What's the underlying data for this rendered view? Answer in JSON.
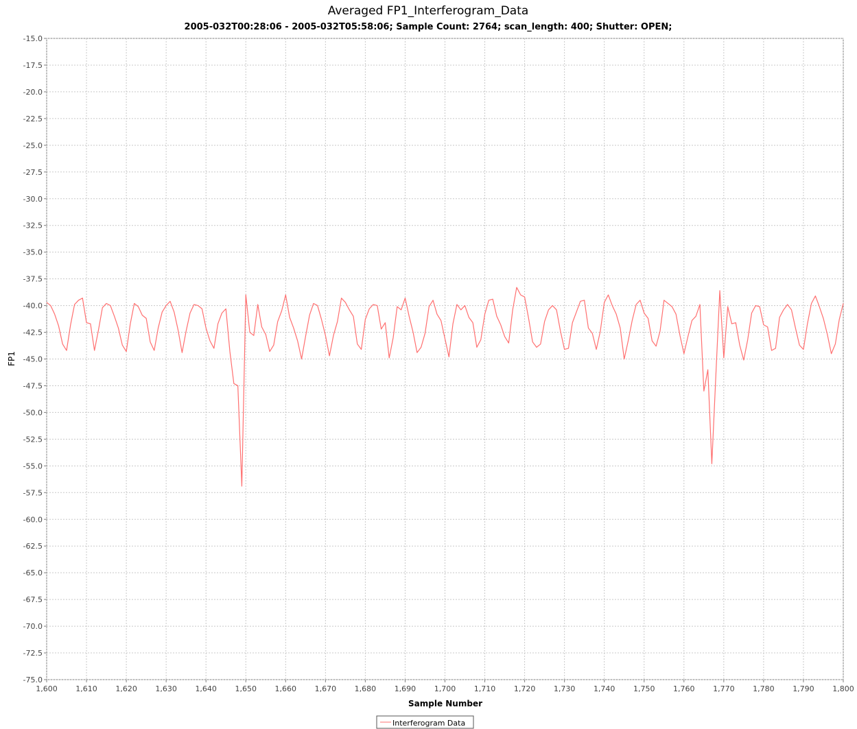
{
  "chart_data": {
    "type": "line",
    "title": "Averaged FP1_Interferogram_Data",
    "subtitle": "2005-032T00:28:06 - 2005-032T05:58:06; Sample Count: 2764; scan_length: 400; Shutter: OPEN;",
    "xlabel": "Sample Number",
    "ylabel": "FP1",
    "xlim": [
      1600,
      1800
    ],
    "ylim": [
      -75.0,
      -15.0
    ],
    "x_ticks": [
      "1,600",
      "1,610",
      "1,620",
      "1,630",
      "1,640",
      "1,650",
      "1,660",
      "1,670",
      "1,680",
      "1,690",
      "1,700",
      "1,710",
      "1,720",
      "1,730",
      "1,740",
      "1,750",
      "1,760",
      "1,770",
      "1,780",
      "1,790",
      "1,800"
    ],
    "y_ticks": [
      "-15.0",
      "-17.5",
      "-20.0",
      "-22.5",
      "-25.0",
      "-27.5",
      "-30.0",
      "-32.5",
      "-35.0",
      "-37.5",
      "-40.0",
      "-42.5",
      "-45.0",
      "-47.5",
      "-50.0",
      "-52.5",
      "-55.0",
      "-57.5",
      "-60.0",
      "-62.5",
      "-65.0",
      "-67.5",
      "-70.0",
      "-72.5",
      "-75.0"
    ],
    "grid": true,
    "legend_position": "bottom-center",
    "series": [
      {
        "name": "Interferogram Data",
        "color": "#ff6f6f",
        "x_start": 1600,
        "x_step": 1,
        "values": [
          -39.7,
          -40.0,
          -40.8,
          -41.9,
          -43.6,
          -44.2,
          -41.8,
          -39.9,
          -39.5,
          -39.3,
          -41.6,
          -41.7,
          -44.2,
          -42.3,
          -40.2,
          -39.8,
          -40.0,
          -41.0,
          -42.1,
          -43.7,
          -44.3,
          -41.7,
          -39.8,
          -40.1,
          -40.9,
          -41.2,
          -43.4,
          -44.2,
          -42.1,
          -40.6,
          -40.0,
          -39.6,
          -40.6,
          -42.3,
          -44.4,
          -42.4,
          -40.7,
          -39.9,
          -40.0,
          -40.3,
          -42.1,
          -43.3,
          -44.0,
          -41.7,
          -40.7,
          -40.3,
          -44.3,
          -47.3,
          -47.5,
          -56.9,
          -39.0,
          -42.5,
          -42.8,
          -39.9,
          -42.0,
          -42.7,
          -44.3,
          -43.7,
          -41.5,
          -40.5,
          -39.0,
          -41.1,
          -42.1,
          -43.3,
          -45.0,
          -42.9,
          -40.9,
          -39.8,
          -40.0,
          -41.3,
          -42.8,
          -44.7,
          -42.8,
          -41.5,
          -39.3,
          -39.7,
          -40.4,
          -41.0,
          -43.6,
          -44.1,
          -41.3,
          -40.3,
          -39.9,
          -40.0,
          -42.2,
          -41.6,
          -44.9,
          -43.0,
          -40.1,
          -40.4,
          -39.3,
          -41.0,
          -42.5,
          -44.4,
          -43.9,
          -42.6,
          -40.1,
          -39.5,
          -40.8,
          -41.4,
          -43.1,
          -44.8,
          -41.7,
          -39.9,
          -40.4,
          -40.0,
          -41.1,
          -41.6,
          -43.9,
          -43.2,
          -40.8,
          -39.5,
          -39.4,
          -41.0,
          -41.8,
          -42.9,
          -43.5,
          -40.4,
          -38.3,
          -39.0,
          -39.2,
          -41.2,
          -43.4,
          -43.9,
          -43.6,
          -41.5,
          -40.4,
          -40.0,
          -40.4,
          -42.4,
          -44.1,
          -44.0,
          -41.6,
          -40.6,
          -39.6,
          -39.5,
          -42.1,
          -42.6,
          -44.1,
          -42.4,
          -39.7,
          -39.0,
          -40.0,
          -40.8,
          -42.1,
          -45.0,
          -43.3,
          -41.4,
          -39.9,
          -39.5,
          -40.7,
          -41.2,
          -43.3,
          -43.8,
          -42.4,
          -39.5,
          -39.8,
          -40.1,
          -40.8,
          -42.8,
          -44.5,
          -42.9,
          -41.4,
          -41.0,
          -39.9,
          -48.0,
          -46.0,
          -54.8,
          -46.6,
          -38.6,
          -44.9,
          -40.1,
          -41.7,
          -41.6,
          -43.7,
          -45.1,
          -43.2,
          -40.7,
          -40.0,
          -40.1,
          -41.8,
          -42.0,
          -44.2,
          -44.0,
          -41.1,
          -40.4,
          -39.9,
          -40.4,
          -42.1,
          -43.7,
          -44.1,
          -41.7,
          -39.8,
          -39.1,
          -40.1,
          -41.2,
          -42.7,
          -44.5,
          -43.6,
          -41.3,
          -39.8
        ]
      }
    ]
  }
}
